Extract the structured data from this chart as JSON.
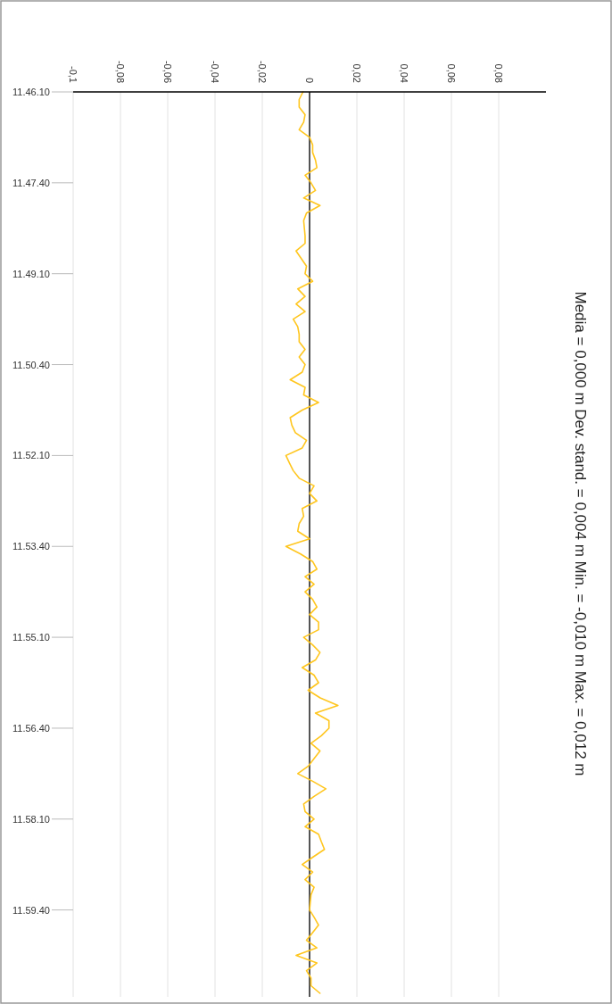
{
  "chart_data": {
    "type": "line",
    "orientation": "horizontal",
    "title": "Media = 0,000 m Dev. stand. = 0,004 m Min. = -0,010 m Max. = 0,012 m",
    "categories": [
      "11.46.10",
      null,
      null,
      null,
      null,
      null,
      null,
      null,
      null,
      null,
      null,
      null,
      "11.47.40",
      null,
      null,
      null,
      null,
      null,
      null,
      null,
      null,
      null,
      null,
      null,
      "11.49.10",
      null,
      null,
      null,
      null,
      null,
      null,
      null,
      null,
      null,
      null,
      null,
      "11.50.40",
      null,
      null,
      null,
      null,
      null,
      null,
      null,
      null,
      null,
      null,
      null,
      "11.52.10",
      null,
      null,
      null,
      null,
      null,
      null,
      null,
      null,
      null,
      null,
      null,
      "11.53.40",
      null,
      null,
      null,
      null,
      null,
      null,
      null,
      null,
      null,
      null,
      null,
      "11.55.10",
      null,
      null,
      null,
      null,
      null,
      null,
      null,
      null,
      null,
      null,
      null,
      "11.56.40",
      null,
      null,
      null,
      null,
      null,
      null,
      null,
      null,
      null,
      null,
      null,
      "11.58.10",
      null,
      null,
      null,
      null,
      null,
      null,
      null,
      null,
      null,
      null,
      null,
      "11.59.40",
      null,
      null,
      null,
      null,
      null,
      null,
      null,
      null,
      null,
      null,
      null
    ],
    "series": [
      {
        "color": "#ffc61e",
        "values": [
          -0.0028,
          -0.0044,
          -0.0044,
          -0.0019,
          -0.0025,
          -0.0044,
          0,
          0.0013,
          0.0013,
          0.0025,
          0.0031,
          -0.0019,
          0.0006,
          0.0025,
          -0.0025,
          0.0044,
          -0.0013,
          -0.0025,
          -0.0022,
          -0.0019,
          -0.0019,
          -0.0057,
          -0.0035,
          -0.0013,
          -0.0019,
          0.0013,
          -0.005,
          -0.0019,
          -0.0057,
          -0.0019,
          -0.0069,
          -0.005,
          -0.0044,
          -0.0044,
          -0.0019,
          -0.0044,
          -0.0019,
          -0.0031,
          -0.0082,
          -0.0019,
          -0.0025,
          0.0038,
          -0.0031,
          -0.0082,
          -0.0075,
          -0.006,
          -0.0013,
          -0.0031,
          -0.01,
          -0.0085,
          -0.0069,
          -0.0044,
          0.0019,
          0,
          0.0031,
          -0.0031,
          -0.0025,
          -0.0044,
          -0.005,
          0,
          -0.01,
          -0.0038,
          0.0013,
          0.0031,
          -0.0019,
          0.0019,
          -0.0019,
          0.0013,
          0.0031,
          0,
          0.0038,
          0.0038,
          -0.0025,
          0.0013,
          0.0044,
          0.0025,
          -0.0031,
          0.0019,
          0.0038,
          -0.0006,
          0.0045,
          0.012,
          0.0025,
          0.0082,
          0.0082,
          0.005,
          0.0006,
          0.0044,
          0.0019,
          -0.0005,
          -0.005,
          0.0013,
          0.0069,
          0.0019,
          -0.0025,
          -0.0019,
          0.0019,
          -0.0019,
          0.0038,
          0.005,
          0.0063,
          0.0015,
          -0.0031,
          0.0013,
          -0.0019,
          0.0019,
          0.0006,
          0.0003,
          0,
          0.002,
          0.0038,
          0.0013,
          -0.0013,
          0.0031,
          -0.0057,
          0.0031,
          -0.0013,
          0.0006,
          0.0006,
          0.0044
        ]
      }
    ],
    "xlim": [
      -0.1,
      0.1
    ],
    "xticks": [
      {
        "value": -0.1,
        "label": "-0,1"
      },
      {
        "value": -0.08,
        "label": "-0,08"
      },
      {
        "value": -0.06,
        "label": "-0,06"
      },
      {
        "value": -0.04,
        "label": "-0,04"
      },
      {
        "value": -0.02,
        "label": "-0,02"
      },
      0,
      {
        "value": 0.02,
        "label": "0,02"
      },
      {
        "value": 0.04,
        "label": "0,04"
      },
      {
        "value": 0.06,
        "label": "0,06"
      },
      {
        "value": 0.08,
        "label": "0,08"
      }
    ],
    "grid": "x",
    "ref_lines": [
      {
        "axis": "x",
        "value": 0,
        "color": "#000000"
      }
    ]
  }
}
